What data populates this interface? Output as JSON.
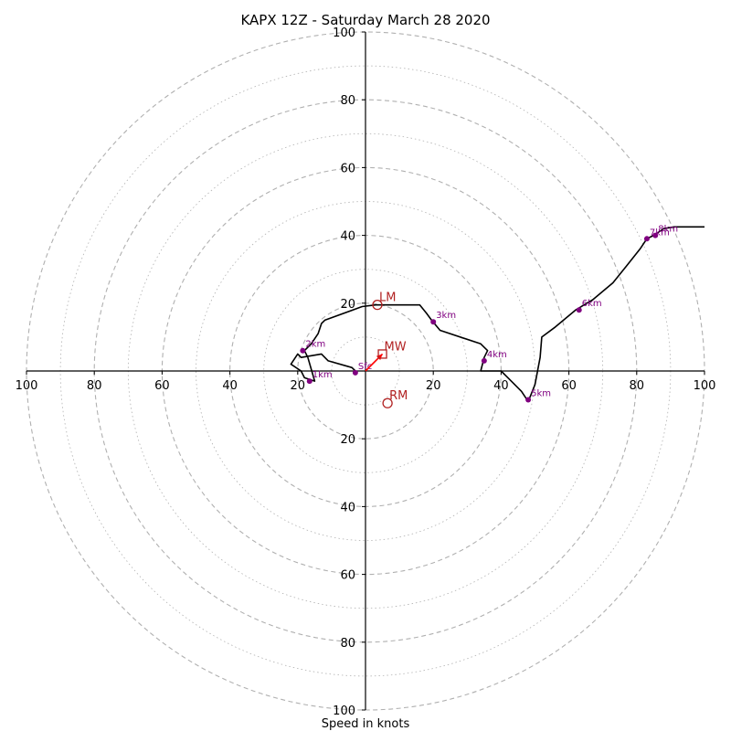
{
  "chart_data": {
    "type": "hodograph",
    "title": "KAPX 12Z - Saturday March 28 2020",
    "xlabel": "Speed in knots",
    "ylabel": "",
    "xlim": [
      -100,
      100
    ],
    "ylim": [
      -100,
      100
    ],
    "rings_major": [
      20,
      40,
      60,
      80,
      100
    ],
    "rings_minor": [
      10,
      30,
      50,
      70,
      90
    ],
    "x_tick_labels": [
      "100",
      "80",
      "60",
      "40",
      "20",
      "20",
      "40",
      "60",
      "80",
      "100"
    ],
    "y_tick_labels": [
      "100",
      "80",
      "60",
      "40",
      "20",
      "20",
      "40",
      "60",
      "80",
      "100"
    ],
    "tick_values": [
      -100,
      -80,
      -60,
      -40,
      -20,
      20,
      40,
      60,
      80,
      100
    ],
    "trace": [
      [
        -3,
        0
      ],
      [
        -4,
        1
      ],
      [
        -11,
        3
      ],
      [
        -13,
        5
      ],
      [
        -19,
        4
      ],
      [
        -20,
        5
      ],
      [
        -22,
        2
      ],
      [
        -19,
        0
      ],
      [
        -18,
        -2
      ],
      [
        -15,
        -3
      ],
      [
        -17,
        4
      ],
      [
        -18,
        6
      ],
      [
        -16,
        8
      ],
      [
        -14,
        11
      ],
      [
        -13,
        14
      ],
      [
        -12,
        15
      ],
      [
        -1,
        19
      ],
      [
        3,
        19.5
      ],
      [
        10,
        19.5
      ],
      [
        16,
        19.5
      ],
      [
        18,
        17
      ],
      [
        19.5,
        15
      ],
      [
        22,
        12
      ],
      [
        34,
        8
      ],
      [
        36,
        6
      ],
      [
        35,
        4
      ],
      [
        34,
        0
      ],
      [
        40,
        0
      ],
      [
        43,
        -3
      ],
      [
        46,
        -6
      ],
      [
        48,
        -9
      ],
      [
        50,
        -4
      ],
      [
        51.5,
        4
      ],
      [
        52,
        10
      ],
      [
        56,
        13
      ],
      [
        62,
        18
      ],
      [
        67,
        21
      ],
      [
        73,
        26
      ],
      [
        77,
        31
      ],
      [
        81,
        36
      ],
      [
        83,
        39
      ],
      [
        85,
        40
      ],
      [
        88,
        42
      ],
      [
        91,
        42.5
      ],
      [
        100,
        42.5
      ]
    ],
    "height_markers": [
      {
        "label": "Sfc",
        "u": -3,
        "v": -0.5
      },
      {
        "label": "1km",
        "u": -16.5,
        "v": -3
      },
      {
        "label": "2km",
        "u": -18.5,
        "v": 6
      },
      {
        "label": "3km",
        "u": 20,
        "v": 14.5
      },
      {
        "label": "4km",
        "u": 35,
        "v": 3
      },
      {
        "label": "5km",
        "u": 48,
        "v": -8.5
      },
      {
        "label": "6km",
        "u": 63,
        "v": 18
      },
      {
        "label": "7km",
        "u": 83,
        "v": 39
      },
      {
        "label": "8km",
        "u": 85.5,
        "v": 40
      }
    ],
    "motions": [
      {
        "label": "LM",
        "symbol": "circle",
        "u": 3.5,
        "v": 19.5
      },
      {
        "label": "MW",
        "symbol": "square",
        "u": 5,
        "v": 5
      },
      {
        "label": "RM",
        "symbol": "circle",
        "u": 6.5,
        "v": -9.5
      }
    ],
    "shear_arrow": {
      "from": [
        0,
        0
      ],
      "to": [
        5,
        5
      ]
    },
    "colors": {
      "trace": "#000000",
      "marker": "#800080",
      "motion": "#b22222",
      "arrow": "#ff0000",
      "grid": "#b0b0b0",
      "axis": "#000000"
    }
  }
}
